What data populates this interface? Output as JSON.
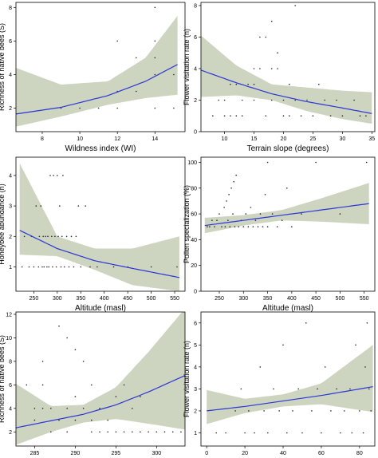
{
  "figure": {
    "background": "#ffffff",
    "band_color": "#cdd5c0",
    "line_color": "#2b35d4",
    "point_color": "#222222"
  },
  "chart_data": [
    {
      "type": "scatter",
      "xlabel": "Wildness index (WI)",
      "ylabel": "Richness of native bees (S)",
      "xlim": [
        6.6,
        15.6
      ],
      "ylim": [
        0.6,
        8.3
      ],
      "xticks": [
        8,
        10,
        12,
        14
      ],
      "yticks": [
        2,
        4,
        6,
        8
      ],
      "points": [
        [
          9,
          2
        ],
        [
          10,
          2
        ],
        [
          11,
          2
        ],
        [
          12,
          2
        ],
        [
          12,
          3
        ],
        [
          12,
          6
        ],
        [
          13,
          3
        ],
        [
          13,
          5
        ],
        [
          14,
          2
        ],
        [
          14,
          4
        ],
        [
          14,
          5
        ],
        [
          14,
          6
        ],
        [
          14,
          8
        ],
        [
          14,
          8.5
        ],
        [
          15,
          2
        ],
        [
          15,
          4
        ]
      ],
      "fit": {
        "x": [
          6.6,
          9,
          11.5,
          13.5,
          15.2
        ],
        "y": [
          1.65,
          2.05,
          2.75,
          3.6,
          4.6
        ]
      },
      "ci_lower": [
        0.9,
        1.5,
        2.2,
        2.6,
        2.8
      ],
      "ci_upper": [
        4.4,
        3.4,
        3.6,
        5.0,
        7.5
      ]
    },
    {
      "type": "scatter",
      "xlabel": "Terrain slope (degrees)",
      "ylabel": "Flower visitation rate (n)",
      "xlim": [
        6,
        35.5
      ],
      "ylim": [
        0,
        8.2
      ],
      "xticks": [
        10,
        15,
        20,
        25,
        30,
        35
      ],
      "yticks": [
        0,
        2,
        4,
        6,
        8
      ],
      "points": [
        [
          8,
          1
        ],
        [
          9,
          2
        ],
        [
          10,
          1
        ],
        [
          11,
          1
        ],
        [
          12,
          1
        ],
        [
          12,
          3
        ],
        [
          13,
          2
        ],
        [
          14,
          3
        ],
        [
          15,
          2
        ],
        [
          15,
          3
        ],
        [
          16,
          4
        ],
        [
          16,
          6
        ],
        [
          17,
          1
        ],
        [
          17,
          6
        ],
        [
          18,
          2
        ],
        [
          18,
          4
        ],
        [
          19,
          5
        ],
        [
          20,
          1
        ],
        [
          20,
          2
        ],
        [
          21,
          3
        ],
        [
          22,
          2
        ],
        [
          23,
          1
        ],
        [
          24,
          2
        ],
        [
          25,
          1
        ],
        [
          26,
          3
        ],
        [
          27,
          2
        ],
        [
          28,
          1
        ],
        [
          29,
          2
        ],
        [
          30,
          1
        ],
        [
          32,
          2
        ],
        [
          33,
          1
        ],
        [
          34,
          1
        ],
        [
          18,
          7
        ],
        [
          22,
          8
        ],
        [
          10,
          2
        ],
        [
          11,
          3
        ],
        [
          13,
          1
        ],
        [
          15,
          4
        ],
        [
          19,
          4
        ],
        [
          21,
          1
        ]
      ],
      "fit": {
        "x": [
          6,
          12,
          18,
          24,
          30,
          35
        ],
        "y": [
          3.9,
          3.1,
          2.4,
          1.9,
          1.5,
          1.15
        ]
      },
      "ci_lower": [
        2.2,
        2.3,
        2.0,
        1.3,
        0.8,
        0.5
      ],
      "ci_upper": [
        6.1,
        4.2,
        3.0,
        2.8,
        2.6,
        2.5
      ]
    },
    {
      "type": "scatter",
      "xlabel": "Altitude (masl)",
      "ylabel": "Honeybee abundance (n)",
      "xlim": [
        212,
        572
      ],
      "ylim": [
        0.2,
        4.6
      ],
      "xticks": [
        250,
        300,
        350,
        400,
        450,
        500,
        550
      ],
      "yticks": [
        1,
        2,
        3,
        4
      ],
      "points": [
        [
          225,
          1
        ],
        [
          230,
          2
        ],
        [
          240,
          1
        ],
        [
          245,
          2
        ],
        [
          250,
          1
        ],
        [
          255,
          3
        ],
        [
          260,
          1
        ],
        [
          262,
          2
        ],
        [
          265,
          3
        ],
        [
          268,
          1
        ],
        [
          270,
          2
        ],
        [
          272,
          1
        ],
        [
          275,
          2
        ],
        [
          278,
          1
        ],
        [
          280,
          2
        ],
        [
          282,
          1
        ],
        [
          285,
          4
        ],
        [
          288,
          2
        ],
        [
          290,
          1
        ],
        [
          292,
          4
        ],
        [
          295,
          2
        ],
        [
          298,
          1
        ],
        [
          300,
          4
        ],
        [
          302,
          2
        ],
        [
          305,
          3
        ],
        [
          308,
          1
        ],
        [
          310,
          2
        ],
        [
          312,
          4
        ],
        [
          315,
          1
        ],
        [
          320,
          2
        ],
        [
          325,
          1
        ],
        [
          330,
          2
        ],
        [
          335,
          1
        ],
        [
          340,
          2
        ],
        [
          345,
          3
        ],
        [
          350,
          1
        ],
        [
          360,
          3
        ],
        [
          370,
          1
        ],
        [
          385,
          1
        ],
        [
          420,
          1
        ],
        [
          450,
          1
        ],
        [
          500,
          1
        ],
        [
          555,
          1
        ]
      ],
      "fit": {
        "x": [
          220,
          300,
          380,
          460,
          560
        ],
        "y": [
          2.2,
          1.6,
          1.2,
          0.95,
          0.65
        ]
      },
      "ci_lower": [
        1.4,
        1.35,
        0.9,
        0.4,
        0.2
      ],
      "ci_upper": [
        4.4,
        2.0,
        1.6,
        1.6,
        2.0
      ]
    },
    {
      "type": "scatter",
      "xlabel": "Altitude (masl)",
      "ylabel": "Pollen specialization (%)",
      "xlim": [
        212,
        572
      ],
      "ylim": [
        0,
        104
      ],
      "xticks": [
        250,
        300,
        350,
        400,
        450,
        500,
        550
      ],
      "yticks": [
        0,
        20,
        40,
        60,
        80,
        100
      ],
      "points": [
        [
          225,
          50
        ],
        [
          230,
          50
        ],
        [
          235,
          55
        ],
        [
          240,
          50
        ],
        [
          245,
          55
        ],
        [
          250,
          60
        ],
        [
          255,
          50
        ],
        [
          260,
          65
        ],
        [
          262,
          50
        ],
        [
          265,
          70
        ],
        [
          268,
          55
        ],
        [
          270,
          75
        ],
        [
          272,
          50
        ],
        [
          275,
          80
        ],
        [
          278,
          60
        ],
        [
          280,
          85
        ],
        [
          282,
          50
        ],
        [
          285,
          90
        ],
        [
          290,
          50
        ],
        [
          295,
          55
        ],
        [
          300,
          50
        ],
        [
          305,
          60
        ],
        [
          310,
          50
        ],
        [
          315,
          65
        ],
        [
          320,
          50
        ],
        [
          325,
          55
        ],
        [
          330,
          50
        ],
        [
          335,
          60
        ],
        [
          340,
          50
        ],
        [
          345,
          75
        ],
        [
          350,
          50
        ],
        [
          360,
          60
        ],
        [
          370,
          50
        ],
        [
          380,
          55
        ],
        [
          390,
          80
        ],
        [
          400,
          50
        ],
        [
          420,
          60
        ],
        [
          450,
          100
        ],
        [
          500,
          60
        ],
        [
          555,
          100
        ],
        [
          350,
          100
        ]
      ],
      "fit": {
        "x": [
          220,
          300,
          380,
          460,
          560
        ],
        "y": [
          51,
          55,
          59,
          63,
          68
        ]
      },
      "ci_lower": [
        45,
        51,
        55,
        54,
        52
      ],
      "ci_upper": [
        57,
        59,
        63,
        72,
        84
      ]
    },
    {
      "type": "scatter",
      "xlabel": "Surface temperature (K)",
      "ylabel": "Richness of native bees (S)",
      "xlim": [
        282.7,
        303.5
      ],
      "ylim": [
        0.8,
        12.2
      ],
      "xticks": [
        285,
        290,
        295,
        300
      ],
      "yticks": [
        2,
        4,
        6,
        8,
        10,
        12
      ],
      "points": [
        [
          284,
          6
        ],
        [
          285,
          3
        ],
        [
          285,
          4
        ],
        [
          286,
          6
        ],
        [
          286,
          8
        ],
        [
          287,
          2
        ],
        [
          287,
          4
        ],
        [
          288,
          3
        ],
        [
          288,
          11
        ],
        [
          289,
          4
        ],
        [
          289,
          10
        ],
        [
          290,
          3
        ],
        [
          290,
          5
        ],
        [
          290,
          9
        ],
        [
          291,
          4
        ],
        [
          292,
          3
        ],
        [
          292,
          6
        ],
        [
          293,
          4
        ],
        [
          293,
          2
        ],
        [
          294,
          2
        ],
        [
          295,
          2
        ],
        [
          295,
          5
        ],
        [
          296,
          2
        ],
        [
          296,
          6
        ],
        [
          297,
          2
        ],
        [
          297,
          4
        ],
        [
          298,
          2
        ],
        [
          299,
          2
        ],
        [
          300,
          2
        ],
        [
          301,
          2
        ],
        [
          302,
          2
        ],
        [
          303,
          2
        ],
        [
          298,
          5
        ],
        [
          291,
          8
        ],
        [
          294,
          3
        ],
        [
          292,
          2
        ],
        [
          289,
          2
        ],
        [
          286,
          4
        ]
      ],
      "fit": {
        "x": [
          282.7,
          287,
          291,
          295,
          299,
          303.5
        ],
        "y": [
          2.35,
          2.95,
          3.5,
          4.3,
          5.4,
          6.8
        ]
      },
      "ci_lower": [
        0.9,
        2.0,
        2.8,
        3.1,
        2.7,
        2.2
      ],
      "ci_upper": [
        6.1,
        4.2,
        4.3,
        5.8,
        8.8,
        12.5
      ]
    },
    {
      "type": "scatter",
      "xlabel": "Vegetation Continuous Fields (VCF)",
      "ylabel": "Flower visitation rate (n)",
      "xlim": [
        -3,
        88
      ],
      "ylim": [
        0.4,
        6.5
      ],
      "xticks": [
        0,
        20,
        40,
        60,
        80
      ],
      "yticks": [
        1,
        2,
        3,
        4,
        5,
        6
      ],
      "points": [
        [
          5,
          1
        ],
        [
          10,
          1
        ],
        [
          15,
          2
        ],
        [
          18,
          3
        ],
        [
          20,
          1
        ],
        [
          22,
          2
        ],
        [
          25,
          1
        ],
        [
          28,
          4
        ],
        [
          30,
          2
        ],
        [
          32,
          1
        ],
        [
          35,
          3
        ],
        [
          38,
          2
        ],
        [
          40,
          5
        ],
        [
          42,
          1
        ],
        [
          45,
          2
        ],
        [
          48,
          3
        ],
        [
          50,
          1
        ],
        [
          52,
          6
        ],
        [
          55,
          2
        ],
        [
          58,
          3
        ],
        [
          60,
          1
        ],
        [
          62,
          4
        ],
        [
          65,
          2
        ],
        [
          68,
          3
        ],
        [
          70,
          1
        ],
        [
          72,
          2
        ],
        [
          75,
          3
        ],
        [
          78,
          5
        ],
        [
          80,
          2
        ],
        [
          82,
          1
        ],
        [
          84,
          6
        ],
        [
          85,
          3
        ],
        [
          86,
          2
        ],
        [
          83,
          4
        ],
        [
          76,
          1
        ]
      ],
      "fit": {
        "x": [
          0,
          20,
          40,
          60,
          87
        ],
        "y": [
          2.0,
          2.2,
          2.45,
          2.7,
          3.1
        ]
      },
      "ci_lower": [
        1.4,
        1.9,
        2.2,
        2.3,
        1.95
      ],
      "ci_upper": [
        2.95,
        2.55,
        2.75,
        3.25,
        5.0
      ]
    }
  ]
}
